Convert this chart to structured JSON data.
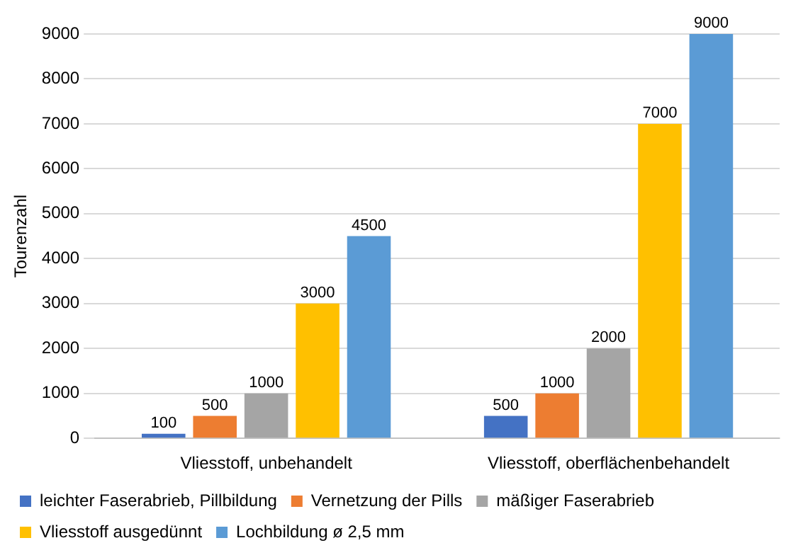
{
  "chart_data": {
    "type": "bar",
    "ylabel": "Tourenzahl",
    "categories": [
      "Vliesstoff, unbehandelt",
      "Vliesstoff, oberflächenbehandelt"
    ],
    "series": [
      {
        "name": "leichter Faserabrieb, Pillbildung",
        "color": "#4472c4",
        "values": [
          100,
          500
        ]
      },
      {
        "name": "Vernetzung der Pills",
        "color": "#ed7d31",
        "values": [
          500,
          1000
        ]
      },
      {
        "name": "mäßiger Faserabrieb",
        "color": "#a5a5a5",
        "values": [
          1000,
          2000
        ]
      },
      {
        "name": "Vliesstoff ausgedünnt",
        "color": "#ffc000",
        "values": [
          3000,
          7000
        ]
      },
      {
        "name": "Lochbildung ø 2,5 mm",
        "color": "#5b9bd5",
        "values": [
          4500,
          9000
        ]
      }
    ],
    "ylim": [
      0,
      9000
    ],
    "yticks": [
      0,
      1000,
      2000,
      3000,
      4000,
      5000,
      6000,
      7000,
      8000,
      9000
    ],
    "grid": "y",
    "legend": "bottom",
    "data_labels": true
  }
}
